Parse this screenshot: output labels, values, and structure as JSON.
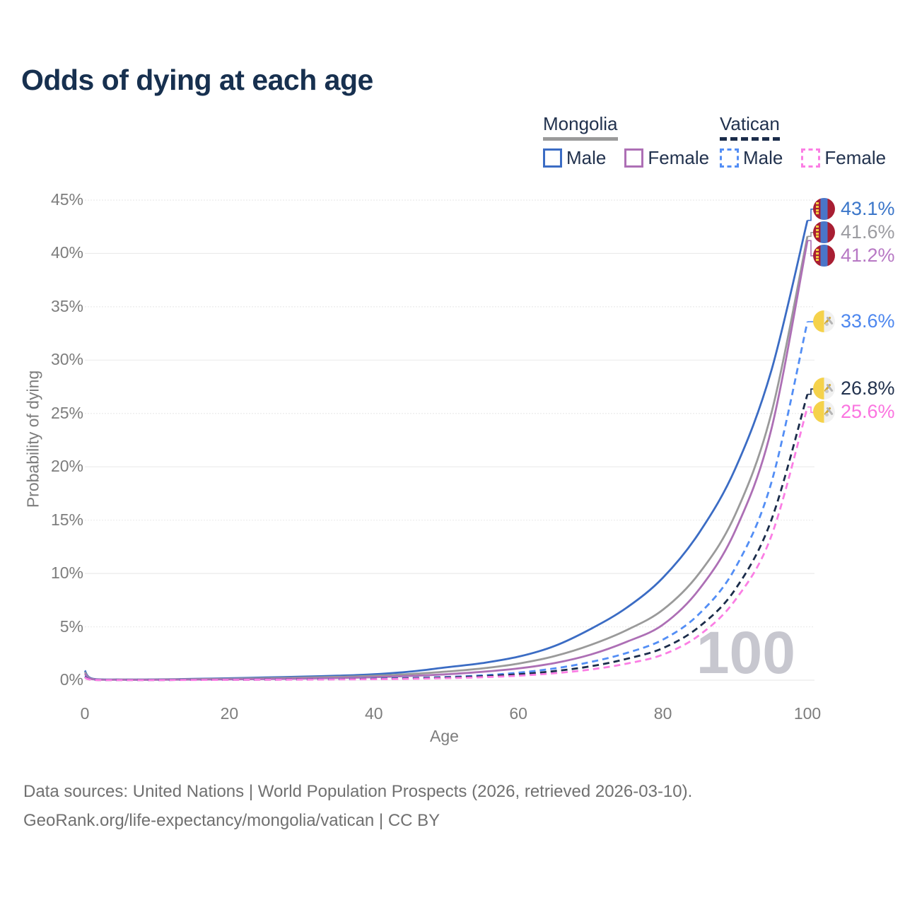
{
  "title": "Odds of dying at each age",
  "watermark": "100",
  "footer": {
    "line1": "Data sources: United Nations | World Population Prospects (2026, retrieved 2026-03-10).",
    "line2": "GeoRank.org/life-expectancy/mongolia/vatican | CC BY"
  },
  "legend": {
    "groups": [
      {
        "name": "Mongolia",
        "underline_style": "solid",
        "underline_color": "#9a9a9a",
        "items": [
          {
            "label": "Male",
            "color": "#3b6cc4",
            "dash": false
          },
          {
            "label": "Female",
            "color": "#ad6fb5",
            "dash": false
          }
        ]
      },
      {
        "name": "Vatican",
        "underline_style": "dashed",
        "underline_color": "#1b2c4a",
        "items": [
          {
            "label": "Male",
            "color": "#538ef5",
            "dash": true
          },
          {
            "label": "Female",
            "color": "#fb7ee4",
            "dash": true
          }
        ]
      }
    ]
  },
  "axes": {
    "x": {
      "label": "Age",
      "ticks": [
        0,
        20,
        40,
        60,
        80,
        100
      ],
      "range": [
        0,
        100
      ]
    },
    "y": {
      "label": "Probability of dying",
      "ticks": [
        "0%",
        "5%",
        "10%",
        "15%",
        "20%",
        "25%",
        "30%",
        "35%",
        "40%",
        "45%"
      ],
      "range_percent": [
        0,
        45
      ]
    }
  },
  "chart_data": {
    "type": "line",
    "title": "Odds of dying at each age",
    "xlabel": "Age",
    "ylabel": "Probability of dying",
    "xlim": [
      0,
      100
    ],
    "ylim_percent": [
      0,
      45
    ],
    "grid": true,
    "legend_position": "top-right",
    "x": [
      0,
      1,
      5,
      10,
      15,
      20,
      25,
      30,
      35,
      40,
      45,
      50,
      55,
      60,
      65,
      70,
      75,
      80,
      85,
      90,
      95,
      100
    ],
    "series": [
      {
        "name": "Mongolia Male",
        "country": "Mongolia",
        "sex": "male",
        "style": "solid",
        "color": "#3b6cc4",
        "label_color": "#3b76c9",
        "flag": "mongolia",
        "end_label": "43.1%",
        "values_percent": [
          0.9,
          0.15,
          0.06,
          0.07,
          0.12,
          0.18,
          0.25,
          0.33,
          0.42,
          0.55,
          0.8,
          1.2,
          1.6,
          2.2,
          3.2,
          4.8,
          6.8,
          9.6,
          13.8,
          19.8,
          29.0,
          43.1
        ]
      },
      {
        "name": "Mongolia Both sexes",
        "country": "Mongolia",
        "sex": "both",
        "style": "solid",
        "color": "#9a9a9a",
        "label_color": "#9c9ca1",
        "flag": "mongolia",
        "end_label": "41.6%",
        "values_percent": [
          0.75,
          0.12,
          0.05,
          0.05,
          0.09,
          0.13,
          0.18,
          0.24,
          0.31,
          0.41,
          0.57,
          0.8,
          1.1,
          1.55,
          2.25,
          3.3,
          4.7,
          6.6,
          10.0,
          15.5,
          25.0,
          41.6
        ]
      },
      {
        "name": "Mongolia Female",
        "country": "Mongolia",
        "sex": "female",
        "style": "solid",
        "color": "#ad6fb5",
        "label_color": "#b778c4",
        "flag": "mongolia",
        "end_label": "41.2%",
        "values_percent": [
          0.6,
          0.1,
          0.04,
          0.04,
          0.06,
          0.08,
          0.11,
          0.15,
          0.2,
          0.28,
          0.4,
          0.55,
          0.78,
          1.1,
          1.6,
          2.4,
          3.6,
          5.2,
          8.5,
          14.0,
          23.5,
          41.2
        ]
      },
      {
        "name": "Vatican Male",
        "country": "Vatican",
        "sex": "male",
        "style": "dashed",
        "color": "#538ef5",
        "label_color": "#4d87ef",
        "flag": "vatican",
        "end_label": "33.6%",
        "values_percent": [
          0.35,
          0.05,
          0.02,
          0.02,
          0.03,
          0.05,
          0.06,
          0.08,
          0.11,
          0.15,
          0.21,
          0.3,
          0.45,
          0.7,
          1.1,
          1.7,
          2.55,
          3.8,
          6.2,
          10.5,
          18.5,
          33.6
        ]
      },
      {
        "name": "Vatican Both sexes",
        "country": "Vatican",
        "sex": "both",
        "style": "dashed",
        "color": "#1b2c4a",
        "label_color": "#22324e",
        "flag": "vatican",
        "end_label": "26.8%",
        "values_percent": [
          0.3,
          0.04,
          0.02,
          0.02,
          0.03,
          0.04,
          0.05,
          0.07,
          0.09,
          0.12,
          0.17,
          0.25,
          0.37,
          0.55,
          0.85,
          1.3,
          2.0,
          3.0,
          5.0,
          8.5,
          15.0,
          26.8
        ]
      },
      {
        "name": "Vatican Female",
        "country": "Vatican",
        "sex": "female",
        "style": "dashed",
        "color": "#fb7ee4",
        "label_color": "#fb74e0",
        "flag": "vatican",
        "end_label": "25.6%",
        "values_percent": [
          0.25,
          0.03,
          0.01,
          0.01,
          0.02,
          0.03,
          0.04,
          0.05,
          0.07,
          0.09,
          0.13,
          0.19,
          0.28,
          0.42,
          0.65,
          1.0,
          1.55,
          2.4,
          4.2,
          7.5,
          13.5,
          25.6
        ]
      }
    ]
  }
}
